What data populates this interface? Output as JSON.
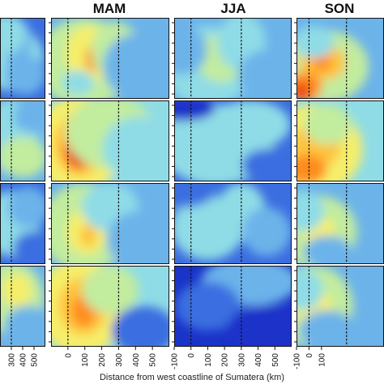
{
  "chart_data": {
    "type": "heatmap",
    "titles": [
      "MAM",
      "JJA",
      "SON"
    ],
    "xlabel": "Distance from west coastline of Sumatera (km)",
    "xlim": [
      -100,
      600
    ],
    "panel_columns": [
      {
        "season": "",
        "tick_labels": [
          "300",
          "400",
          "500"
        ]
      },
      {
        "season": "MAM",
        "tick_labels": [
          "0",
          "100",
          "200",
          "300",
          "400",
          "500"
        ]
      },
      {
        "season": "JJA",
        "tick_labels": [
          "-100",
          "0",
          "100",
          "200",
          "300",
          "400",
          "500"
        ]
      },
      {
        "season": "SON",
        "tick_labels": [
          "-100",
          "0",
          "100"
        ]
      }
    ],
    "coastline_x": 0,
    "offshore_marker_x": 300,
    "rows": 4,
    "colormap": [
      "#1a33c9",
      "#3b6ee0",
      "#6cb3ea",
      "#8fdce6",
      "#c2ec9e",
      "#f5ee6a",
      "#ffc23d",
      "#ff8c1f",
      "#ed3e12",
      "#c80f0f"
    ]
  }
}
